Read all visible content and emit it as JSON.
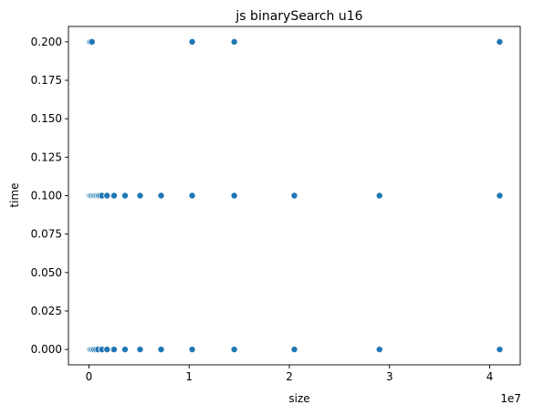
{
  "chart_data": {
    "type": "scatter",
    "title": "js binarySearch u16",
    "xlabel": "size",
    "ylabel": "time",
    "x_offset_label": "1e7",
    "xlim": [
      -2050000,
      43050000
    ],
    "ylim": [
      -0.01,
      0.21
    ],
    "x_ticks": [
      0,
      10000000,
      20000000,
      30000000,
      40000000
    ],
    "x_tick_labels": [
      "0",
      "1",
      "2",
      "3",
      "4"
    ],
    "y_ticks": [
      0,
      0.025,
      0.05,
      0.075,
      0.1,
      0.125,
      0.15,
      0.175,
      0.2
    ],
    "y_tick_labels": [
      "0.000",
      "0.025",
      "0.050",
      "0.075",
      "0.100",
      "0.125",
      "0.150",
      "0.175",
      "0.200"
    ],
    "grid": false,
    "marker_color": "#1f77b4",
    "points": [
      {
        "x": 10,
        "y": 0.0
      },
      {
        "x": 100,
        "y": 0.0
      },
      {
        "x": 1000,
        "y": 0.0
      },
      {
        "x": 10000,
        "y": 0.0
      },
      {
        "x": 50000,
        "y": 0.0
      },
      {
        "x": 100000,
        "y": 0.0
      },
      {
        "x": 200000,
        "y": 0.0
      },
      {
        "x": 350000,
        "y": 0.0
      },
      {
        "x": 500000,
        "y": 0.0
      },
      {
        "x": 700000,
        "y": 0.0
      },
      {
        "x": 900000,
        "y": 0.0
      },
      {
        "x": 1300000,
        "y": 0.0
      },
      {
        "x": 1800000,
        "y": 0.0
      },
      {
        "x": 2500000,
        "y": 0.0
      },
      {
        "x": 3600000,
        "y": 0.0
      },
      {
        "x": 5100000,
        "y": 0.0
      },
      {
        "x": 7200000,
        "y": 0.0
      },
      {
        "x": 10300000,
        "y": 0.0
      },
      {
        "x": 14500000,
        "y": 0.0
      },
      {
        "x": 20500000,
        "y": 0.0
      },
      {
        "x": 29000000,
        "y": 0.0
      },
      {
        "x": 41000000,
        "y": 0.0
      },
      {
        "x": 10000,
        "y": 0.1
      },
      {
        "x": 100000,
        "y": 0.1
      },
      {
        "x": 200000,
        "y": 0.1
      },
      {
        "x": 350000,
        "y": 0.1
      },
      {
        "x": 500000,
        "y": 0.1
      },
      {
        "x": 650000,
        "y": 0.1
      },
      {
        "x": 800000,
        "y": 0.1
      },
      {
        "x": 950000,
        "y": 0.1
      },
      {
        "x": 1100000,
        "y": 0.1
      },
      {
        "x": 1300000,
        "y": 0.1
      },
      {
        "x": 1800000,
        "y": 0.1
      },
      {
        "x": 2500000,
        "y": 0.1
      },
      {
        "x": 3600000,
        "y": 0.1
      },
      {
        "x": 5100000,
        "y": 0.1
      },
      {
        "x": 7200000,
        "y": 0.1
      },
      {
        "x": 10300000,
        "y": 0.1
      },
      {
        "x": 14500000,
        "y": 0.1
      },
      {
        "x": 20500000,
        "y": 0.1
      },
      {
        "x": 29000000,
        "y": 0.1
      },
      {
        "x": 41000000,
        "y": 0.1
      },
      {
        "x": 50000,
        "y": 0.2
      },
      {
        "x": 150000,
        "y": 0.2
      },
      {
        "x": 300000,
        "y": 0.2
      },
      {
        "x": 10300000,
        "y": 0.2
      },
      {
        "x": 14500000,
        "y": 0.2
      },
      {
        "x": 41000000,
        "y": 0.2
      }
    ]
  }
}
